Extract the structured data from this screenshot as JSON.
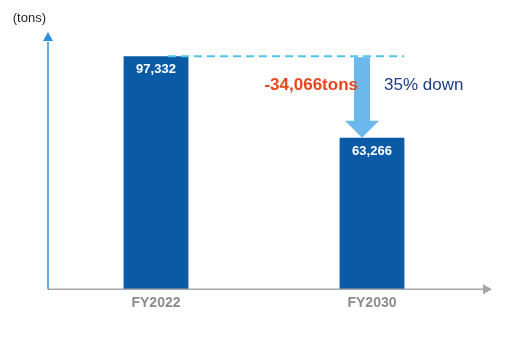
{
  "chart_data": {
    "type": "bar",
    "ylabel": "(tons)",
    "categories": [
      "FY2022",
      "FY2030"
    ],
    "values": [
      97332,
      63266
    ],
    "value_labels": [
      "97,332",
      "63,266"
    ],
    "data_labels": true,
    "color": "#0b5aa6",
    "ylim": [
      0,
      105000
    ],
    "tick_labels": "x",
    "grid": false,
    "annotations": [
      {
        "text": "-34,066tons",
        "color": "#e8461e"
      },
      {
        "text": "35% down",
        "color": "#1f3c88"
      }
    ]
  }
}
